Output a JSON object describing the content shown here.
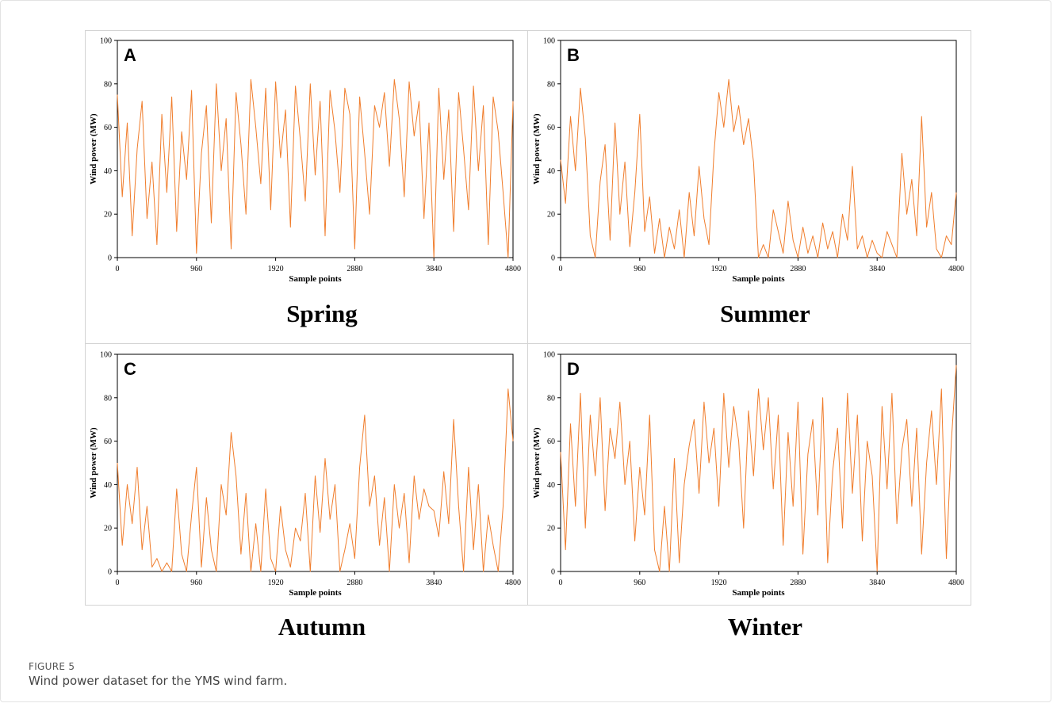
{
  "figure": {
    "label": "FIGURE 5",
    "caption": "Wind power dataset for the YMS wind farm."
  },
  "colors": {
    "series": "#f07d2c",
    "axis": "#000000",
    "frame": "#d4d4d4"
  },
  "chart_data": [
    {
      "type": "line",
      "letter": "A",
      "season": "Spring",
      "xlabel": "Sample points",
      "ylabel": "Wind power (MW)",
      "xlim": [
        0,
        4800
      ],
      "ylim": [
        0,
        100
      ],
      "xticks": [
        0,
        960,
        1920,
        2880,
        3840,
        4800
      ],
      "yticks": [
        0,
        20,
        40,
        60,
        80,
        100
      ],
      "x": [
        0,
        60,
        120,
        180,
        240,
        300,
        360,
        420,
        480,
        540,
        600,
        660,
        720,
        780,
        840,
        900,
        960,
        1020,
        1080,
        1140,
        1200,
        1260,
        1320,
        1380,
        1440,
        1500,
        1560,
        1620,
        1680,
        1740,
        1800,
        1860,
        1920,
        1980,
        2040,
        2100,
        2160,
        2220,
        2280,
        2340,
        2400,
        2460,
        2520,
        2580,
        2640,
        2700,
        2760,
        2820,
        2880,
        2940,
        3000,
        3060,
        3120,
        3180,
        3240,
        3300,
        3360,
        3420,
        3480,
        3540,
        3600,
        3660,
        3720,
        3780,
        3840,
        3900,
        3960,
        4020,
        4080,
        4140,
        4200,
        4260,
        4320,
        4380,
        4440,
        4500,
        4560,
        4620,
        4680,
        4740,
        4800
      ],
      "y": [
        75,
        28,
        62,
        10,
        50,
        72,
        18,
        44,
        6,
        66,
        30,
        74,
        12,
        58,
        36,
        77,
        2,
        48,
        70,
        16,
        80,
        40,
        64,
        4,
        76,
        52,
        20,
        82,
        60,
        34,
        78,
        22,
        81,
        46,
        68,
        14,
        79,
        54,
        26,
        80,
        38,
        72,
        10,
        77,
        58,
        30,
        78,
        66,
        4,
        74,
        48,
        20,
        70,
        60,
        76,
        42,
        82,
        64,
        28,
        81,
        56,
        72,
        18,
        62,
        0,
        78,
        36,
        68,
        12,
        76,
        50,
        22,
        79,
        40,
        70,
        6,
        74,
        58,
        30,
        0,
        72
      ]
    },
    {
      "type": "line",
      "letter": "B",
      "season": "Summer",
      "xlabel": "Sample points",
      "ylabel": "Wind power (MW)",
      "xlim": [
        0,
        4800
      ],
      "ylim": [
        0,
        100
      ],
      "xticks": [
        0,
        960,
        1920,
        2880,
        3840,
        4800
      ],
      "yticks": [
        0,
        20,
        40,
        60,
        80,
        100
      ],
      "x": [
        0,
        60,
        120,
        180,
        240,
        300,
        360,
        420,
        480,
        540,
        600,
        660,
        720,
        780,
        840,
        900,
        960,
        1020,
        1080,
        1140,
        1200,
        1260,
        1320,
        1380,
        1440,
        1500,
        1560,
        1620,
        1680,
        1740,
        1800,
        1860,
        1920,
        1980,
        2040,
        2100,
        2160,
        2220,
        2280,
        2340,
        2400,
        2460,
        2520,
        2580,
        2640,
        2700,
        2760,
        2820,
        2880,
        2940,
        3000,
        3060,
        3120,
        3180,
        3240,
        3300,
        3360,
        3420,
        3480,
        3540,
        3600,
        3660,
        3720,
        3780,
        3840,
        3900,
        3960,
        4020,
        4080,
        4140,
        4200,
        4260,
        4320,
        4380,
        4440,
        4500,
        4560,
        4620,
        4680,
        4740,
        4800
      ],
      "y": [
        45,
        25,
        65,
        40,
        78,
        55,
        10,
        0,
        35,
        52,
        8,
        62,
        20,
        44,
        5,
        30,
        66,
        12,
        28,
        2,
        18,
        0,
        14,
        4,
        22,
        0,
        30,
        10,
        42,
        18,
        6,
        48,
        76,
        60,
        82,
        58,
        70,
        52,
        64,
        44,
        0,
        6,
        0,
        22,
        12,
        2,
        26,
        8,
        0,
        14,
        2,
        10,
        0,
        16,
        4,
        12,
        0,
        20,
        8,
        42,
        4,
        10,
        0,
        8,
        2,
        0,
        12,
        6,
        0,
        48,
        20,
        36,
        10,
        65,
        14,
        30,
        4,
        0,
        10,
        6,
        30
      ]
    },
    {
      "type": "line",
      "letter": "C",
      "season": "Autumn",
      "xlabel": "Sample points",
      "ylabel": "Wind power (MW)",
      "xlim": [
        0,
        4800
      ],
      "ylim": [
        0,
        100
      ],
      "xticks": [
        0,
        960,
        1920,
        2880,
        3840,
        4800
      ],
      "yticks": [
        0,
        20,
        40,
        60,
        80,
        100
      ],
      "x": [
        0,
        60,
        120,
        180,
        240,
        300,
        360,
        420,
        480,
        540,
        600,
        660,
        720,
        780,
        840,
        900,
        960,
        1020,
        1080,
        1140,
        1200,
        1260,
        1320,
        1380,
        1440,
        1500,
        1560,
        1620,
        1680,
        1740,
        1800,
        1860,
        1920,
        1980,
        2040,
        2100,
        2160,
        2220,
        2280,
        2340,
        2400,
        2460,
        2520,
        2580,
        2640,
        2700,
        2760,
        2820,
        2880,
        2940,
        3000,
        3060,
        3120,
        3180,
        3240,
        3300,
        3360,
        3420,
        3480,
        3540,
        3600,
        3660,
        3720,
        3780,
        3840,
        3900,
        3960,
        4020,
        4080,
        4140,
        4200,
        4260,
        4320,
        4380,
        4440,
        4500,
        4560,
        4620,
        4680,
        4740,
        4800
      ],
      "y": [
        50,
        12,
        40,
        22,
        48,
        10,
        30,
        2,
        6,
        0,
        4,
        0,
        38,
        8,
        0,
        26,
        48,
        2,
        34,
        10,
        0,
        40,
        26,
        64,
        44,
        8,
        36,
        0,
        22,
        0,
        38,
        6,
        0,
        30,
        10,
        2,
        20,
        14,
        36,
        0,
        44,
        18,
        52,
        24,
        40,
        0,
        10,
        22,
        6,
        48,
        72,
        30,
        44,
        12,
        34,
        0,
        40,
        20,
        36,
        4,
        44,
        24,
        38,
        30,
        28,
        16,
        46,
        22,
        70,
        30,
        0,
        48,
        10,
        40,
        0,
        26,
        12,
        0,
        30,
        84,
        60
      ]
    },
    {
      "type": "line",
      "letter": "D",
      "season": "Winter",
      "xlabel": "Sample points",
      "ylabel": "Wind power (MW)",
      "xlim": [
        0,
        4800
      ],
      "ylim": [
        0,
        100
      ],
      "xticks": [
        0,
        960,
        1920,
        2880,
        3840,
        4800
      ],
      "yticks": [
        0,
        20,
        40,
        60,
        80,
        100
      ],
      "x": [
        0,
        60,
        120,
        180,
        240,
        300,
        360,
        420,
        480,
        540,
        600,
        660,
        720,
        780,
        840,
        900,
        960,
        1020,
        1080,
        1140,
        1200,
        1260,
        1320,
        1380,
        1440,
        1500,
        1560,
        1620,
        1680,
        1740,
        1800,
        1860,
        1920,
        1980,
        2040,
        2100,
        2160,
        2220,
        2280,
        2340,
        2400,
        2460,
        2520,
        2580,
        2640,
        2700,
        2760,
        2820,
        2880,
        2940,
        3000,
        3060,
        3120,
        3180,
        3240,
        3300,
        3360,
        3420,
        3480,
        3540,
        3600,
        3660,
        3720,
        3780,
        3840,
        3900,
        3960,
        4020,
        4080,
        4140,
        4200,
        4260,
        4320,
        4380,
        4440,
        4500,
        4560,
        4620,
        4680,
        4740,
        4800
      ],
      "y": [
        55,
        10,
        68,
        30,
        82,
        20,
        72,
        44,
        80,
        28,
        66,
        52,
        78,
        40,
        60,
        14,
        48,
        26,
        72,
        10,
        0,
        30,
        0,
        52,
        4,
        40,
        58,
        70,
        36,
        78,
        50,
        66,
        30,
        82,
        48,
        76,
        60,
        20,
        74,
        44,
        84,
        56,
        80,
        38,
        72,
        12,
        64,
        30,
        78,
        8,
        54,
        70,
        26,
        80,
        4,
        46,
        66,
        20,
        82,
        36,
        72,
        14,
        60,
        44,
        0,
        76,
        38,
        82,
        22,
        56,
        70,
        30,
        66,
        8,
        50,
        74,
        40,
        84,
        6,
        60,
        95
      ]
    }
  ]
}
